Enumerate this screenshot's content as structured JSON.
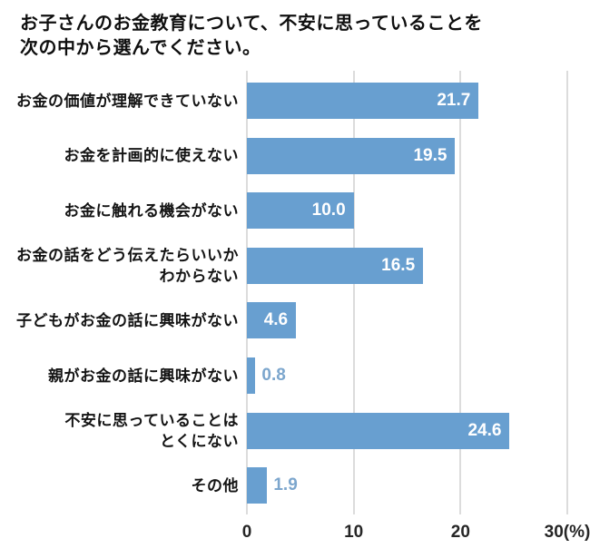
{
  "title": {
    "line1": "お子さんのお金教育について、不安に思っていることを",
    "line2": "次の中から選んでください。"
  },
  "chart_data": {
    "type": "bar",
    "orientation": "horizontal",
    "title": "お子さんのお金教育について、不安に思っていることを次の中から選んでください。",
    "categories": [
      "お金の価値が理解できていない",
      "お金を計画的に使えない",
      "お金に触れる機会がない",
      "お金の話をどう伝えたらいいかわからない",
      "子どもがお金の話に興味がない",
      "親がお金の話に興味がない",
      "不安に思っていることはとくにない",
      "その他"
    ],
    "values": [
      21.7,
      19.5,
      10.0,
      16.5,
      4.6,
      0.8,
      24.6,
      1.9
    ],
    "items": [
      {
        "label": "お金の価値が理解できていない",
        "value": 21.7,
        "label_inside": true
      },
      {
        "label": "お金を計画的に使えない",
        "value": 19.5,
        "label_inside": true
      },
      {
        "label": "お金に触れる機会がない",
        "value": 10.0,
        "label_inside": true
      },
      {
        "label": "お金の話をどう伝えたらいいか\nわからない",
        "value": 16.5,
        "label_inside": true
      },
      {
        "label": "子どもがお金の話に興味がない",
        "value": 4.6,
        "label_inside": true
      },
      {
        "label": "親がお金の話に興味がない",
        "value": 0.8,
        "label_inside": false
      },
      {
        "label": "不安に思っていることは\nとくにない",
        "value": 24.6,
        "label_inside": true
      },
      {
        "label": "その他",
        "value": 1.9,
        "label_inside": false
      }
    ],
    "xlabel": "",
    "ylabel": "",
    "xlim": [
      0,
      30
    ],
    "x_ticks": [
      {
        "label": "0",
        "value": 0
      },
      {
        "label": "10",
        "value": 10
      },
      {
        "label": "20",
        "value": 20
      },
      {
        "label": "30(%)",
        "value": 30
      }
    ],
    "unit": "%",
    "grid": true,
    "legend": "none",
    "colors": {
      "bar": "#689FD0",
      "value_label_inside": "#FFFFFF",
      "value_label_outside": "#7CA6CD",
      "gridline": "#DCDCDC",
      "axis_text": "#262626",
      "category_text": "#141414",
      "title_text": "#0F0F0F"
    }
  }
}
